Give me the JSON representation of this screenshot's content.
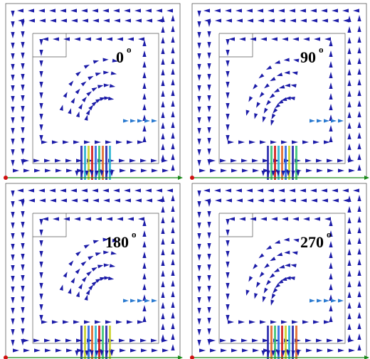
{
  "panels": [
    {
      "label": "0",
      "degree": "o"
    },
    {
      "label": "90",
      "degree": "o"
    },
    {
      "label": "180",
      "degree": "o"
    },
    {
      "label": "270",
      "degree": "o"
    }
  ]
}
